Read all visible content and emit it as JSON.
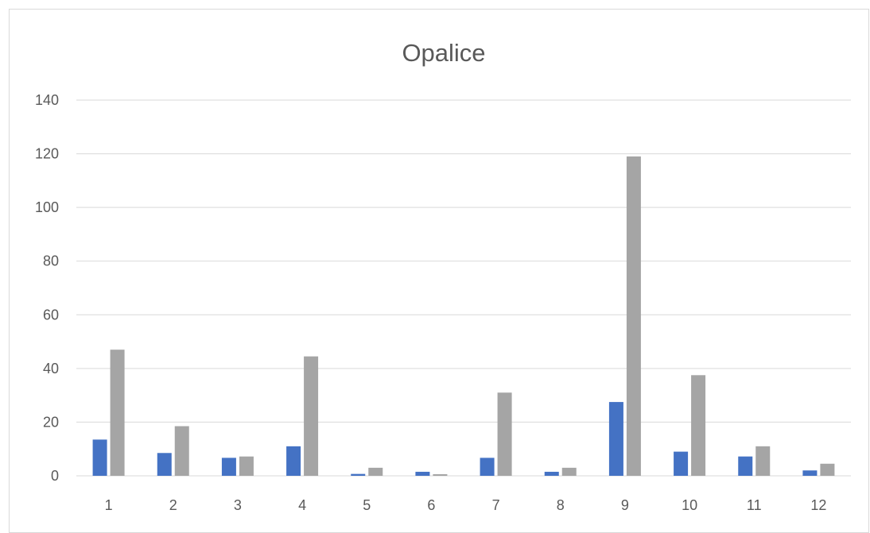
{
  "chart_data": {
    "type": "bar",
    "title": "Opalice",
    "xlabel": "",
    "ylabel": "",
    "categories": [
      "1",
      "2",
      "3",
      "4",
      "5",
      "6",
      "7",
      "8",
      "9",
      "10",
      "11",
      "12"
    ],
    "series": [
      {
        "color": "#4472C4",
        "values": [
          13.5,
          8.5,
          6.7,
          11,
          0.7,
          1.5,
          6.7,
          1.5,
          27.5,
          9,
          7.2,
          2
        ]
      },
      {
        "color": "#A5A5A5",
        "values": [
          47,
          18.5,
          7.2,
          44.5,
          3,
          0.6,
          31,
          3,
          119,
          37.5,
          11,
          4.5
        ]
      }
    ],
    "ylim": [
      0,
      140
    ],
    "yticks": [
      0,
      20,
      40,
      60,
      80,
      100,
      120,
      140
    ],
    "grid": true,
    "legend": "none"
  }
}
